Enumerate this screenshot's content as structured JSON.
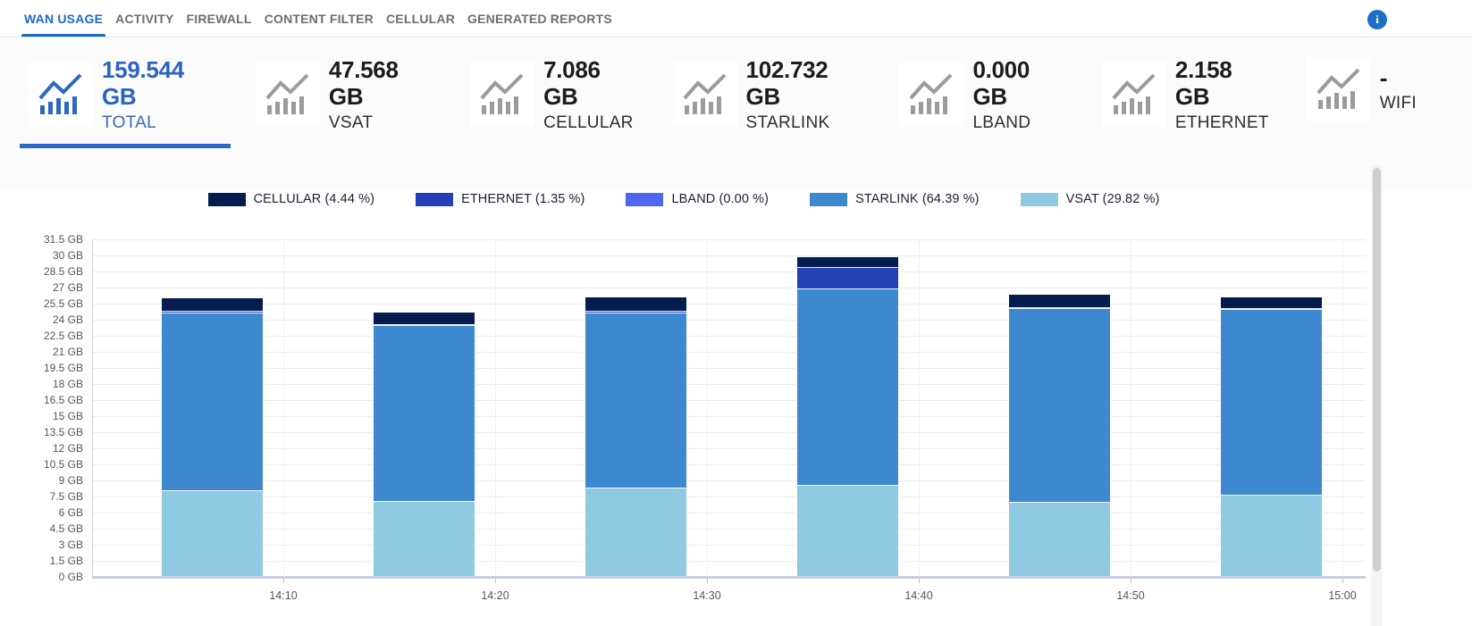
{
  "nav": {
    "tabs": [
      {
        "label": "WAN USAGE",
        "active": true
      },
      {
        "label": "ACTIVITY",
        "active": false
      },
      {
        "label": "FIREWALL",
        "active": false
      },
      {
        "label": "CONTENT FILTER",
        "active": false
      },
      {
        "label": "CELLULAR",
        "active": false
      },
      {
        "label": "GENERATED REPORTS",
        "active": false
      }
    ],
    "info_glyph": "i",
    "active_color": "#1b6ac6"
  },
  "stat_cards": [
    {
      "label": "TOTAL",
      "value": "159.544 GB",
      "active": true
    },
    {
      "label": "VSAT",
      "value": "47.568 GB",
      "active": false
    },
    {
      "label": "CELLULAR",
      "value": "7.086 GB",
      "active": false
    },
    {
      "label": "STARLINK",
      "value": "102.732 GB",
      "active": false
    },
    {
      "label": "LBAND",
      "value": "0.000 GB",
      "active": false
    },
    {
      "label": "ETHERNET",
      "value": "2.158 GB",
      "active": false
    },
    {
      "label": "WIFI",
      "value": "-",
      "active": false
    }
  ],
  "chart_data": {
    "type": "bar",
    "stacked": true,
    "title": "",
    "xlabel": "",
    "ylabel": "GB",
    "ylim": [
      0,
      31.5
    ],
    "y_step": 1.5,
    "grid": true,
    "legend_position": "top-center",
    "x_ticks": [
      "14:10",
      "14:20",
      "14:30",
      "14:40",
      "14:50",
      "15:00"
    ],
    "y_ticks": [
      "0 GB",
      "1.5 GB",
      "3 GB",
      "4.5 GB",
      "6 GB",
      "7.5 GB",
      "9 GB",
      "10.5 GB",
      "12 GB",
      "13.5 GB",
      "15 GB",
      "16.5 GB",
      "18 GB",
      "19.5 GB",
      "21 GB",
      "22.5 GB",
      "24 GB",
      "25.5 GB",
      "27 GB",
      "28.5 GB",
      "30 GB",
      "31.5 GB"
    ],
    "legend": [
      {
        "label": "CELLULAR (4.44 %)",
        "color": "#041d4e"
      },
      {
        "label": "ETHERNET (1.35 %)",
        "color": "#2340b4"
      },
      {
        "label": "LBAND (0.00 %)",
        "color": "#4d68ef"
      },
      {
        "label": "STARLINK (64.39 %)",
        "color": "#3d88cf"
      },
      {
        "label": "VSAT (29.82 %)",
        "color": "#8fc9e2"
      }
    ],
    "series": [
      {
        "name": "VSAT",
        "color": "#8fc9e2",
        "values": [
          8.1,
          7.1,
          8.3,
          8.6,
          7.0,
          7.7
        ]
      },
      {
        "name": "STARLINK",
        "color": "#3d88cf",
        "values": [
          16.6,
          16.4,
          16.4,
          18.3,
          18.1,
          17.3
        ]
      },
      {
        "name": "LBAND",
        "color": "#4d68ef",
        "values": [
          0,
          0,
          0,
          0,
          0,
          0
        ]
      },
      {
        "name": "ETHERNET",
        "color": "#2340b4",
        "values": [
          0.1,
          0.1,
          0.1,
          2.0,
          0.1,
          0.1
        ]
      },
      {
        "name": "CELLULAR",
        "color": "#041d4e",
        "values": [
          1.2,
          1.1,
          1.3,
          0.9,
          1.1,
          1.0
        ]
      }
    ]
  }
}
